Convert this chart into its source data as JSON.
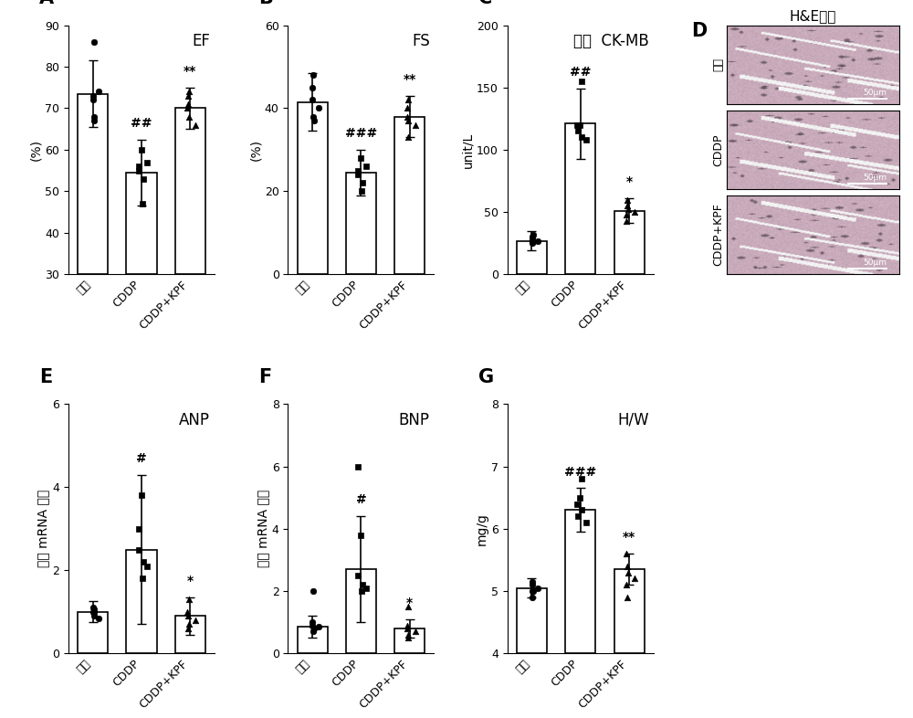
{
  "panels": {
    "A": {
      "title": "EF",
      "ylabel": "(%)",
      "ylim": [
        30,
        90
      ],
      "yticks": [
        30,
        40,
        50,
        60,
        70,
        80,
        90
      ],
      "bars": [
        73.5,
        54.5,
        70.0
      ],
      "errors": [
        8.0,
        8.0,
        5.0
      ],
      "cats": [
        "盐水",
        "CDDP",
        "CDDP+KPF"
      ],
      "sig_above": [
        "",
        "##",
        "**"
      ],
      "dots": [
        [
          73,
          68,
          72,
          74,
          67,
          86
        ],
        [
          55,
          47,
          60,
          53,
          57,
          56
        ],
        [
          71,
          68,
          70,
          73,
          66,
          74
        ]
      ],
      "dot_shapes": [
        "o",
        "s",
        "^"
      ]
    },
    "B": {
      "title": "FS",
      "ylabel": "(%)",
      "ylim": [
        0,
        60
      ],
      "yticks": [
        0,
        20,
        40,
        60
      ],
      "bars": [
        41.5,
        24.5,
        38.0
      ],
      "errors": [
        7.0,
        5.5,
        5.0
      ],
      "cats": [
        "盐水",
        "CDDP",
        "CDDP+KPF"
      ],
      "sig_above": [
        "",
        "###",
        "**"
      ],
      "dots": [
        [
          42,
          38,
          45,
          40,
          37,
          48
        ],
        [
          25,
          20,
          28,
          22,
          26,
          24
        ],
        [
          38,
          33,
          40,
          37,
          36,
          42
        ]
      ],
      "dot_shapes": [
        "o",
        "s",
        "^"
      ]
    },
    "C": {
      "title": "血清  CK-MB",
      "ylabel": "unit/L",
      "ylim": [
        0,
        200
      ],
      "yticks": [
        0,
        50,
        100,
        150,
        200
      ],
      "bars": [
        27.0,
        121.0,
        51.0
      ],
      "errors": [
        8.0,
        28.0,
        10.0
      ],
      "cats": [
        "盐水",
        "CDDP",
        "CDDP+KPF"
      ],
      "sig_above": [
        "",
        "##",
        "*"
      ],
      "dots": [
        [
          28,
          25,
          30,
          27,
          32,
          26
        ],
        [
          115,
          110,
          120,
          155,
          108,
          120
        ],
        [
          48,
          52,
          43,
          55,
          50,
          60
        ]
      ],
      "dot_shapes": [
        "o",
        "s",
        "^"
      ]
    },
    "E": {
      "title": "ANP",
      "ylabel": "相对 mRNA 含量",
      "ylim": [
        0,
        6
      ],
      "yticks": [
        0,
        2,
        4,
        6
      ],
      "bars": [
        1.0,
        2.5,
        0.9
      ],
      "errors": [
        0.25,
        1.8,
        0.45
      ],
      "cats": [
        "盐水",
        "CDDP",
        "CDDP+KPF"
      ],
      "sig_above": [
        "",
        "#",
        "*"
      ],
      "dots": [
        [
          1.0,
          0.9,
          1.1,
          0.85,
          1.0,
          1.05
        ],
        [
          2.5,
          1.8,
          3.8,
          2.2,
          2.1,
          3.0
        ],
        [
          0.9,
          0.7,
          1.0,
          0.6,
          0.8,
          1.3
        ]
      ],
      "dot_shapes": [
        "o",
        "s",
        "^"
      ]
    },
    "F": {
      "title": "BNP",
      "ylabel": "相对 mRNA 含量",
      "ylim": [
        0,
        8
      ],
      "yticks": [
        0,
        2,
        4,
        6,
        8
      ],
      "bars": [
        0.85,
        2.7,
        0.8
      ],
      "errors": [
        0.35,
        1.7,
        0.3
      ],
      "cats": [
        "盐水",
        "CDDP",
        "CDDP+KPF"
      ],
      "sig_above": [
        "",
        "#",
        "*"
      ],
      "dots": [
        [
          0.9,
          0.7,
          1.0,
          0.85,
          0.8,
          2.0
        ],
        [
          2.5,
          2.0,
          3.8,
          2.2,
          2.1,
          6.0
        ],
        [
          0.8,
          0.6,
          0.9,
          0.5,
          0.7,
          1.5
        ]
      ],
      "dot_shapes": [
        "o",
        "s",
        "^"
      ]
    },
    "G": {
      "title": "H/W",
      "ylabel": "mg/g",
      "ylim": [
        4,
        8
      ],
      "yticks": [
        4,
        5,
        6,
        7,
        8
      ],
      "bars": [
        5.05,
        6.3,
        5.35
      ],
      "errors": [
        0.15,
        0.35,
        0.25
      ],
      "cats": [
        "盐水",
        "CDDP",
        "CDDP+KPF"
      ],
      "sig_above": [
        "",
        "###",
        "**"
      ],
      "dots": [
        [
          5.0,
          4.9,
          5.1,
          5.05,
          5.0,
          5.15
        ],
        [
          6.2,
          6.3,
          6.5,
          6.8,
          6.1,
          6.4
        ],
        [
          5.1,
          5.3,
          5.6,
          4.9,
          5.2,
          5.4
        ]
      ],
      "dot_shapes": [
        "o",
        "s",
        "^"
      ]
    }
  },
  "D_labels": [
    "盐水",
    "CDDP",
    "CDDP+KPF"
  ],
  "D_title": "H&E染色",
  "bar_color": "#ffffff",
  "bar_edgecolor": "#000000",
  "background_color": "#ffffff",
  "panel_label_fontsize": 15,
  "title_fontsize": 12,
  "tick_fontsize": 9,
  "axis_label_fontsize": 10,
  "sig_fontsize": 10,
  "he_image_base_gray": 0.72,
  "he_fiber_color": [
    0.95,
    0.95,
    0.97
  ],
  "he_nucleus_color": [
    0.25,
    0.22,
    0.32
  ],
  "he_bg_r": 0.78,
  "he_bg_g": 0.74,
  "he_bg_b": 0.8
}
